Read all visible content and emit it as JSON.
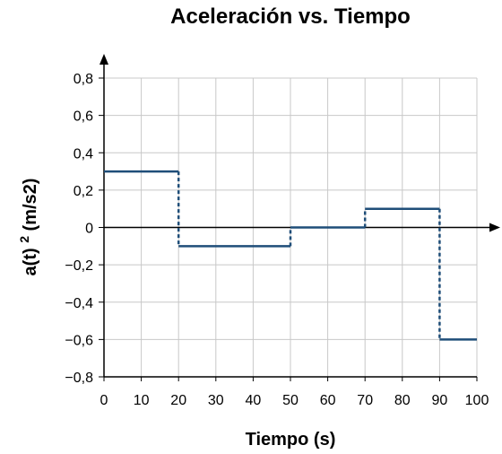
{
  "chart_data": {
    "type": "line",
    "title": "Aceleración vs. Tiempo",
    "xlabel": "Tiempo (s)",
    "ylabel": {
      "prefix": "a(t)",
      "unit": "(m/s2)"
    },
    "xlim": [
      0,
      100
    ],
    "ylim": [
      -0.8,
      0.8
    ],
    "x_ticks": [
      0,
      10,
      20,
      30,
      40,
      50,
      60,
      70,
      80,
      90,
      100
    ],
    "x_tick_labels": [
      "0",
      "10",
      "20",
      "30",
      "40",
      "50",
      "60",
      "70",
      "80",
      "90",
      "100"
    ],
    "y_ticks": [
      0.8,
      0.6,
      0.4,
      0.2,
      0,
      -0.2,
      -0.4,
      -0.6,
      -0.8
    ],
    "y_tick_labels": [
      "0,8",
      "0,6",
      "0,4",
      "0,2",
      "0",
      "−0,2",
      "−0,4",
      "−0,6",
      "−0,8"
    ],
    "grid": true,
    "series": [
      {
        "style": "step",
        "color": "#1f4e79",
        "segments": [
          {
            "x0": 0,
            "x1": 20,
            "y": 0.3
          },
          {
            "x0": 20,
            "x1": 50,
            "y": -0.1
          },
          {
            "x0": 50,
            "x1": 70,
            "y": 0
          },
          {
            "x0": 70,
            "x1": 90,
            "y": 0.1
          },
          {
            "x0": 90,
            "x1": 100,
            "y": -0.6
          }
        ]
      }
    ]
  }
}
